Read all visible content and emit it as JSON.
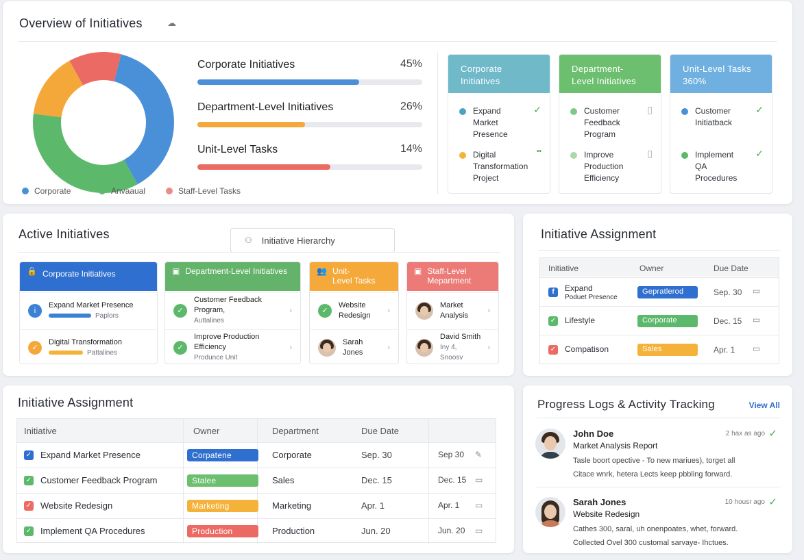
{
  "overview": {
    "title": "Overview of Initiatives",
    "rows": [
      {
        "label": "Corporate Initiatives",
        "pct": "45%",
        "fill": 0.72,
        "color": "#4a90d9"
      },
      {
        "label": "Department-Level Initiatives",
        "pct": "26%",
        "fill": 0.48,
        "color": "#f5a83a"
      },
      {
        "label": "Unit-Level Tasks",
        "pct": "14%",
        "fill": 0.59,
        "color": "#ec6a64"
      }
    ],
    "legend": [
      {
        "label": "Corporate",
        "color": "#4a90d9"
      },
      {
        "label": "Anvaaual",
        "color": "#5cb86a"
      },
      {
        "label": "Staff-Level Tasks",
        "color": "#ec8b86"
      }
    ],
    "donut": [
      {
        "value": 38,
        "color": "#4a90d9"
      },
      {
        "value": 35,
        "color": "#5cb86a"
      },
      {
        "value": 15,
        "color": "#f5a83a"
      },
      {
        "value": 12,
        "color": "#ec6a64"
      }
    ],
    "columns": [
      {
        "title": "Corporate\nInitiatives",
        "color": "#6fb9c9",
        "items": [
          {
            "text": "Expand\nMarket\nPresence",
            "dot": "#4aa3c2",
            "mark": "✓"
          },
          {
            "text": "Digital\nTransformation\nProject",
            "dot": "#f5b23a",
            "mark": "••"
          }
        ]
      },
      {
        "title": "Department-\nLevel Initiatives",
        "color": "#6cbf6e",
        "items": [
          {
            "text": "Customer\nFeedback\nProgram",
            "dot": "#7fc88a",
            "mark": "▯"
          },
          {
            "text": "Improve\nProduction\nEfficiency",
            "dot": "#a9d9a9",
            "mark": "▯"
          }
        ]
      },
      {
        "title": "Unit-Level Tasks\n360%",
        "color": "#6fb0e0",
        "items": [
          {
            "text": "Customer\nInitiatback",
            "dot": "#4a90d9",
            "mark": "✓"
          },
          {
            "text": "Implement\nQA\nProcedures",
            "dot": "#5cb86a",
            "mark": "✓"
          }
        ]
      }
    ]
  },
  "active": {
    "title": "Active Initiatives",
    "hierarchy_button": "Initiative Hierarchy",
    "columns": [
      {
        "title": "Corporate Initiatives",
        "color": "#2f6fcf",
        "rows": [
          {
            "main": "Expand Market Presence",
            "sub": "Paplors",
            "icon_color": "#3b82d6"
          },
          {
            "main": "Digital Transformation",
            "sub": "Pattalines",
            "icon_color": "#f5a83a"
          }
        ]
      },
      {
        "title": "Department-Level Initiatives",
        "color": "#64b36a",
        "rows": [
          {
            "main": "Customer Feedback\nProgram,",
            "sub": "Auttalines",
            "icon_color": "#5cb86a"
          },
          {
            "main": "Improve Production\nEfficiency",
            "sub": "Produnce Unit",
            "icon_color": "#5cb86a"
          }
        ]
      },
      {
        "title": "Unit-\nLevel Tasks",
        "color": "#f5a93a",
        "rows": [
          {
            "main": "Website\nRedesign",
            "sub": "",
            "icon_color": "#5cb86a"
          },
          {
            "main": "Sarah\nJones",
            "sub": "",
            "icon_color": ""
          }
        ]
      },
      {
        "title": "Staff-Level\nMepartment",
        "color": "#ec7a76",
        "rows": [
          {
            "main": "Market\nAnalysis",
            "sub": "",
            "icon_color": ""
          },
          {
            "main": "David Smith",
            "sub": "Iny 4, Snoosv",
            "icon_color": ""
          }
        ]
      }
    ]
  },
  "assign_small": {
    "title": "Initiative Assignment",
    "headers": [
      "Initiative",
      "Owner",
      "Due Date"
    ],
    "rows": [
      {
        "name": "Expand",
        "sub": "Poduet Presence",
        "tag": "Gepratlerod",
        "tag_color": "#2f6fcf",
        "date": "Sep. 30",
        "icon": "f",
        "icon_color": "#2f6fcf"
      },
      {
        "name": "Lifestyle",
        "sub": "",
        "tag": "Corporate",
        "tag_color": "#5cb86a",
        "date": "Dec. 15",
        "icon": "✓",
        "icon_color": "#5cb86a"
      },
      {
        "name": "Compatison",
        "sub": "",
        "tag": "Sales",
        "tag_color": "#f5b23a",
        "date": "Apr. 1",
        "icon": "✓",
        "icon_color": "#ec6a64"
      }
    ]
  },
  "assign": {
    "title": "Initiative Assignment",
    "headers": [
      "Initiative",
      "Owner",
      "Department",
      "Due Date"
    ],
    "rows": [
      {
        "name": "Expand Market Presence",
        "tag": "Corpatene",
        "tag_color": "#2f6fcf",
        "dept": "Corporate",
        "date": "Sep. 30",
        "date2": "Sep 30",
        "cb": "#2f6fcf"
      },
      {
        "name": "Customer Feedback Program",
        "tag": "Stalee",
        "tag_color": "#6cbf6e",
        "dept": "Sales",
        "date": "Dec. 15",
        "date2": "Dec. 15",
        "cb": "#5cb86a"
      },
      {
        "name": "Website Redesign",
        "tag": "Marketing",
        "tag_color": "#f5b23a",
        "dept": "Marketing",
        "date": "Apr. 1",
        "date2": "Apr. 1",
        "cb": "#ec6a64"
      },
      {
        "name": "Implement QA Procedures",
        "tag": "Production",
        "tag_color": "#ec6a64",
        "dept": "Production",
        "date": "Jun. 20",
        "date2": "Jun. 20",
        "cb": "#5cb86a"
      }
    ]
  },
  "logs": {
    "title": "Progress Logs & Activity Tracking",
    "view_all": "View All",
    "entries": [
      {
        "name": "John Doe",
        "time": "2 hax as ago",
        "subject": "Market Analysis Report",
        "line1": "Tasle boort opective - To new mariues), torget all",
        "line2": "Citace wnrk, hetera Lects keep pbbling forward.",
        "gender": "m"
      },
      {
        "name": "Sarah Jones",
        "time": "10 housr ago",
        "subject": "Website Redesign",
        "line1": "Cathes 300, saral, uh onenpoates, whet, forward.",
        "line2": "Collected Ovel 300 customal sarvaye- Ihctues.",
        "gender": "f"
      }
    ]
  }
}
